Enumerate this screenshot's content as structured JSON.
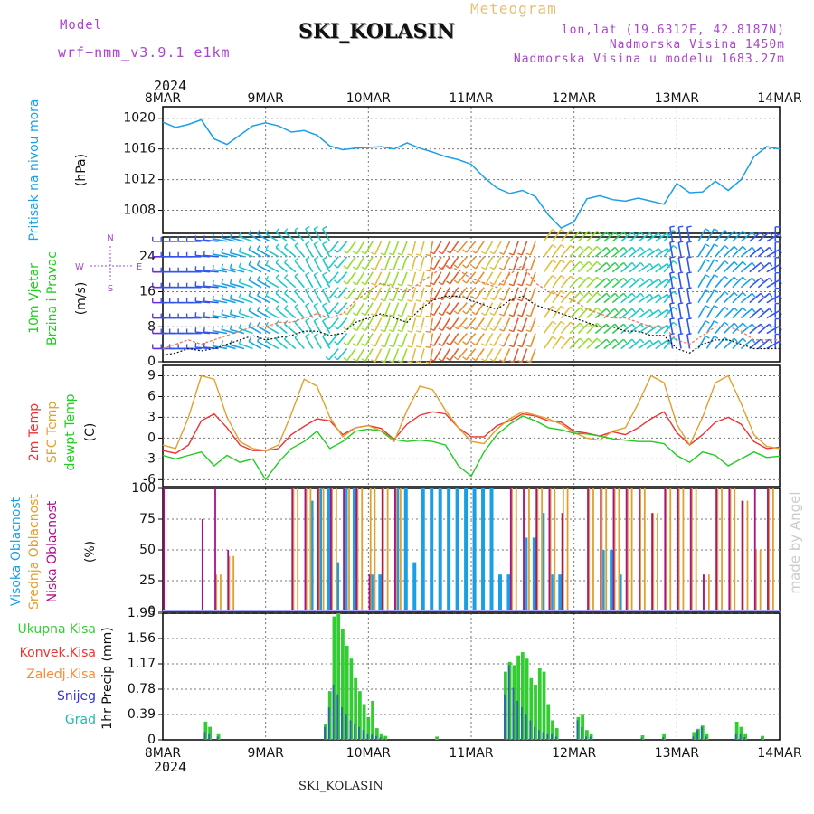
{
  "header": {
    "model_label": "Model",
    "model_name": "wrf−nmm_v3.9.1 e1km",
    "title": "SKI_KOLASIN",
    "meteogram_label": "Meteogram",
    "lonlat": "lon,lat (19.6312E, 42.8187N)",
    "altitude": "Nadmorska Visina 1450m",
    "model_altitude": "Nadmorska Visina u modelu 1683.27m",
    "year_top": "2024"
  },
  "footer": {
    "station": "SKI_KOLASIN",
    "year_bottom": "2024",
    "credit": "made by Angel"
  },
  "colors": {
    "pressure": "#1a9fe6",
    "temp2m": "#ee3333",
    "sfc": "#e0a030",
    "dewpt": "#22cc22",
    "high_cloud": "#1a9fe6",
    "mid_cloud": "#e0a030",
    "low_cloud": "#aa1188",
    "total_precip": "#33cc33",
    "conv_precip": "#ee3333",
    "frozen": "#ff8833",
    "snow": "#3333dd",
    "graupel": "#22bbaa",
    "wind_label": "#22cc22"
  },
  "chart_data": [
    {
      "type": "line",
      "panel": "pressure",
      "ylabel_lines": [
        "Pritisak na nivou mora",
        "(hPa)"
      ],
      "x_ticks": [
        "8MAR",
        "9MAR",
        "10MAR",
        "11MAR",
        "12MAR",
        "13MAR",
        "14MAR"
      ],
      "y_ticks": [
        1008,
        1012,
        1016,
        1020
      ],
      "ylim": [
        1005,
        1021.5
      ],
      "x_hours": [
        0,
        3,
        6,
        9,
        12,
        15,
        18,
        21,
        24,
        27,
        30,
        33,
        36,
        39,
        42,
        45,
        48,
        51,
        54,
        57,
        60,
        63,
        66,
        69,
        72,
        75,
        78,
        81,
        84,
        87,
        90,
        93,
        96,
        99,
        102,
        105,
        108,
        111,
        114,
        117,
        120,
        123,
        126,
        129,
        132,
        135,
        138,
        141,
        144
      ],
      "values": [
        1019.5,
        1018.8,
        1019.2,
        1019.8,
        1017.3,
        1016.6,
        1017.8,
        1019.0,
        1019.4,
        1019.0,
        1018.2,
        1018.4,
        1017.8,
        1016.4,
        1015.9,
        1016.1,
        1016.2,
        1016.3,
        1016.0,
        1016.8,
        1016.1,
        1015.6,
        1015.0,
        1014.6,
        1014.0,
        1012.3,
        1010.9,
        1010.2,
        1010.6,
        1009.8,
        1007.4,
        1005.7,
        1006.5,
        1009.5,
        1009.9,
        1009.4,
        1009.2,
        1009.6,
        1009.2,
        1008.8,
        1011.5,
        1010.3,
        1010.4,
        1011.8,
        1010.6,
        1012.0,
        1015.0,
        1016.3,
        1016.0
      ],
      "series": [
        {
          "name": "Pritisak na nivou mora"
        }
      ]
    },
    {
      "type": "line",
      "panel": "wind",
      "ylabel_lines": [
        "10m Vjetar",
        "Brzina i Pravac",
        "(m/s)"
      ],
      "compass": [
        "N",
        "E",
        "S",
        "W"
      ],
      "y_ticks": [
        0,
        8,
        16,
        24
      ],
      "ylim": [
        0,
        28.5
      ],
      "x_hours": [
        0,
        3,
        6,
        9,
        12,
        15,
        18,
        21,
        24,
        27,
        30,
        33,
        36,
        39,
        42,
        45,
        48,
        51,
        54,
        57,
        60,
        63,
        66,
        69,
        72,
        75,
        78,
        81,
        84,
        87,
        90,
        93,
        96,
        99,
        102,
        105,
        108,
        111,
        114,
        117,
        120,
        123,
        126,
        129,
        132,
        135,
        138,
        141,
        144
      ],
      "speed": [
        1.5,
        2,
        3,
        2.5,
        3,
        4,
        5,
        6,
        5,
        5.5,
        6,
        7,
        7,
        6,
        6.5,
        9,
        10,
        11,
        10,
        9,
        12,
        14,
        15,
        15,
        14,
        13,
        12,
        14,
        15,
        13,
        12,
        11,
        10,
        9,
        8,
        8,
        7,
        7,
        6,
        6,
        3,
        2,
        4,
        5,
        5,
        4,
        3,
        3,
        3
      ],
      "gust": [
        3,
        4,
        5,
        4,
        5,
        6,
        7,
        8,
        8,
        9,
        9,
        10,
        11,
        10,
        11,
        14,
        16,
        18,
        17,
        16,
        18,
        20,
        22,
        21,
        19,
        18,
        17,
        20,
        22,
        18,
        16,
        15,
        14,
        12,
        11,
        10,
        10,
        9,
        8,
        8,
        5,
        4,
        6,
        8,
        8,
        7,
        5,
        5,
        5
      ],
      "direction_deg": [
        270,
        270,
        270,
        270,
        275,
        280,
        285,
        290,
        300,
        300,
        310,
        320,
        330,
        330,
        220,
        215,
        210,
        205,
        200,
        200,
        195,
        190,
        210,
        215,
        220,
        215,
        210,
        205,
        200,
        200,
        35,
        40,
        45,
        45,
        50,
        50,
        50,
        55,
        55,
        40,
        350,
        350,
        30,
        40,
        45,
        50,
        50,
        60,
        0
      ]
    },
    {
      "type": "line",
      "panel": "temperature",
      "ylabel_lines": [
        "2m Temp",
        "SFC Temp",
        "dewpt Temp",
        "(C)"
      ],
      "y_ticks": [
        -6,
        -3,
        0,
        3,
        6,
        9
      ],
      "ylim": [
        -7,
        10.5
      ],
      "x_hours": [
        0,
        3,
        6,
        9,
        12,
        15,
        18,
        21,
        24,
        27,
        30,
        33,
        36,
        39,
        42,
        45,
        48,
        51,
        54,
        57,
        60,
        63,
        66,
        69,
        72,
        75,
        78,
        81,
        84,
        87,
        90,
        93,
        96,
        99,
        102,
        105,
        108,
        111,
        114,
        117,
        120,
        123,
        126,
        129,
        132,
        135,
        138,
        141,
        144
      ],
      "series": [
        {
          "name": "2m Temp",
          "values": [
            -1.8,
            -2.2,
            -1.0,
            2.5,
            3.5,
            1.5,
            -1.0,
            -1.8,
            -1.8,
            -1.5,
            0.5,
            1.7,
            2.8,
            2.5,
            0.5,
            1.5,
            1.8,
            1.4,
            -0.2,
            2.0,
            3.3,
            3.8,
            3.5,
            1.5,
            0.2,
            0.2,
            1.8,
            2.5,
            3.5,
            3.2,
            2.5,
            2.3,
            1.0,
            0.7,
            0.3,
            0.9,
            0.5,
            1.5,
            2.8,
            3.8,
            0.8,
            -1.0,
            0.5,
            2.3,
            3.0,
            2.0,
            -0.5,
            -1.5,
            -1.3
          ]
        },
        {
          "name": "SFC Temp",
          "values": [
            -1.0,
            -1.5,
            3.0,
            9.0,
            8.5,
            3.0,
            -0.5,
            -1.5,
            -1.8,
            -1.0,
            3.5,
            8.5,
            7.5,
            3.0,
            0.2,
            1.5,
            1.8,
            1.0,
            -0.5,
            4.0,
            7.5,
            7.0,
            4.0,
            1.5,
            -0.5,
            -0.8,
            1.3,
            2.8,
            3.8,
            3.3,
            2.8,
            2.0,
            0.8,
            0.0,
            -0.3,
            1.0,
            1.5,
            5.0,
            9.0,
            8.0,
            2.0,
            -1.0,
            3.0,
            8.0,
            9.0,
            5.0,
            0.5,
            -1.2,
            -1.5
          ]
        },
        {
          "name": "dewpt Temp",
          "values": [
            -2.5,
            -3.0,
            -2.5,
            -2.0,
            -4.0,
            -2.5,
            -3.5,
            -3.0,
            -6.0,
            -3.5,
            -1.5,
            -0.5,
            1.0,
            -1.5,
            -0.5,
            1.0,
            1.3,
            1.0,
            -0.2,
            -0.5,
            -0.3,
            -0.5,
            -1.0,
            -4.0,
            -5.5,
            -2.0,
            0.5,
            2.0,
            3.2,
            2.5,
            1.5,
            1.2,
            0.7,
            0.6,
            0.3,
            -0.1,
            -0.3,
            -0.5,
            -0.5,
            -0.8,
            -2.5,
            -3.5,
            -2.0,
            -2.5,
            -4.0,
            -3.0,
            -2.0,
            -2.8,
            -2.6
          ]
        }
      ]
    },
    {
      "type": "bar",
      "panel": "cloud",
      "ylabel_lines": [
        "Visoka Oblacnost",
        "Srednja Oblacnost",
        "Niska Oblacnost",
        "(%)"
      ],
      "y_ticks": [
        0,
        25,
        50,
        75,
        100
      ],
      "ylim": [
        0,
        100
      ],
      "x_hours": [
        0,
        3,
        6,
        9,
        12,
        15,
        18,
        21,
        24,
        27,
        30,
        33,
        36,
        39,
        42,
        45,
        48,
        51,
        54,
        57,
        60,
        63,
        66,
        69,
        72,
        75,
        78,
        81,
        84,
        87,
        90,
        93,
        96,
        99,
        102,
        105,
        108,
        111,
        114,
        117,
        120,
        123,
        126,
        129,
        132,
        135,
        138,
        141,
        144
      ],
      "series": [
        {
          "name": "Visoka Oblacnost",
          "values": [
            0,
            0,
            0,
            0,
            0,
            0,
            0,
            0,
            0,
            0,
            0,
            90,
            100,
            40,
            100,
            0,
            30,
            0,
            100,
            40,
            100,
            100,
            100,
            100,
            100,
            100,
            30,
            0,
            60,
            80,
            30,
            0,
            0,
            0,
            50,
            30,
            0,
            0,
            0,
            0,
            0,
            0,
            0,
            0,
            0,
            0,
            0,
            0,
            0
          ]
        },
        {
          "name": "Srednja Oblacnost",
          "values": [
            0,
            0,
            0,
            0,
            30,
            45,
            0,
            0,
            0,
            0,
            100,
            100,
            100,
            100,
            100,
            100,
            100,
            100,
            100,
            0,
            0,
            0,
            0,
            0,
            0,
            0,
            0,
            100,
            100,
            100,
            100,
            100,
            0,
            100,
            100,
            100,
            100,
            100,
            80,
            100,
            100,
            100,
            30,
            100,
            100,
            90,
            50,
            100,
            0
          ]
        },
        {
          "name": "Niska Oblacnost",
          "values": [
            100,
            0,
            0,
            75,
            100,
            50,
            0,
            0,
            0,
            0,
            100,
            100,
            100,
            100,
            100,
            100,
            30,
            100,
            100,
            0,
            0,
            0,
            0,
            0,
            0,
            0,
            0,
            100,
            100,
            100,
            100,
            80,
            0,
            100,
            100,
            100,
            100,
            100,
            80,
            100,
            100,
            100,
            30,
            100,
            100,
            90,
            100,
            100,
            0
          ]
        }
      ]
    },
    {
      "type": "bar",
      "panel": "precip",
      "ylabel_lines": [
        "1hr Precip (mm)"
      ],
      "legend": [
        "Ukupna Kisa",
        "Konvek.Kisa",
        "Zaledj.Kisa",
        "Snijeg",
        "Grad"
      ],
      "y_ticks": [
        0,
        0.39,
        0.78,
        1.17,
        1.56,
        1.95
      ],
      "ylim": [
        0,
        1.95
      ],
      "bars": [
        {
          "t": 10,
          "total": 0.28,
          "snow": 0.12
        },
        {
          "t": 11,
          "total": 0.2,
          "snow": 0.1
        },
        {
          "t": 13,
          "total": 0.1,
          "snow": 0.05
        },
        {
          "t": 38,
          "total": 0.25,
          "snow": 0.2
        },
        {
          "t": 39,
          "total": 0.75,
          "snow": 0.5
        },
        {
          "t": 40,
          "total": 1.9,
          "snow": 0.85
        },
        {
          "t": 41,
          "total": 1.95,
          "snow": 0.7
        },
        {
          "t": 42,
          "total": 1.7,
          "snow": 0.5
        },
        {
          "t": 43,
          "total": 1.45,
          "snow": 0.4
        },
        {
          "t": 44,
          "total": 1.25,
          "snow": 0.3
        },
        {
          "t": 45,
          "total": 0.95,
          "snow": 0.25
        },
        {
          "t": 46,
          "total": 0.75,
          "snow": 0.2
        },
        {
          "t": 47,
          "total": 0.55,
          "snow": 0.15
        },
        {
          "t": 48,
          "total": 0.35,
          "snow": 0.1
        },
        {
          "t": 49,
          "total": 0.6,
          "snow": 0.08
        },
        {
          "t": 50,
          "total": 0.18,
          "snow": 0.06
        },
        {
          "t": 51,
          "total": 0.1,
          "snow": 0.04
        },
        {
          "t": 52,
          "total": 0.06,
          "snow": 0.02
        },
        {
          "t": 64,
          "total": 0.05,
          "snow": 0.0
        },
        {
          "t": 80,
          "total": 1.05,
          "snow": 0.7
        },
        {
          "t": 81,
          "total": 1.2,
          "snow": 1.15
        },
        {
          "t": 82,
          "total": 1.15,
          "snow": 0.8
        },
        {
          "t": 83,
          "total": 1.3,
          "snow": 0.6
        },
        {
          "t": 84,
          "total": 1.35,
          "snow": 0.5
        },
        {
          "t": 85,
          "total": 1.25,
          "snow": 0.4
        },
        {
          "t": 86,
          "total": 0.95,
          "snow": 0.3
        },
        {
          "t": 87,
          "total": 0.85,
          "snow": 0.2
        },
        {
          "t": 88,
          "total": 1.1,
          "snow": 0.15
        },
        {
          "t": 89,
          "total": 1.05,
          "snow": 0.12
        },
        {
          "t": 90,
          "total": 0.55,
          "snow": 0.1
        },
        {
          "t": 91,
          "total": 0.3,
          "snow": 0.1
        },
        {
          "t": 92,
          "total": 0.18,
          "snow": 0.05
        },
        {
          "t": 97,
          "total": 0.35,
          "snow": 0.3
        },
        {
          "t": 98,
          "total": 0.4,
          "snow": 0.2
        },
        {
          "t": 99,
          "total": 0.15,
          "snow": 0.05
        },
        {
          "t": 100,
          "total": 0.1,
          "snow": 0.05
        },
        {
          "t": 112,
          "total": 0.07,
          "snow": 0.03
        },
        {
          "t": 117,
          "total": 0.1,
          "snow": 0.04
        },
        {
          "t": 124,
          "total": 0.12,
          "snow": 0.05
        },
        {
          "t": 125,
          "total": 0.17,
          "snow": 0.15
        },
        {
          "t": 126,
          "total": 0.22,
          "snow": 0.2
        },
        {
          "t": 127,
          "total": 0.1,
          "snow": 0.05
        },
        {
          "t": 134,
          "total": 0.28,
          "snow": 0.1
        },
        {
          "t": 135,
          "total": 0.2,
          "snow": 0.1
        },
        {
          "t": 136,
          "total": 0.1,
          "snow": 0.04
        },
        {
          "t": 140,
          "total": 0.06,
          "snow": 0.03
        }
      ]
    }
  ]
}
